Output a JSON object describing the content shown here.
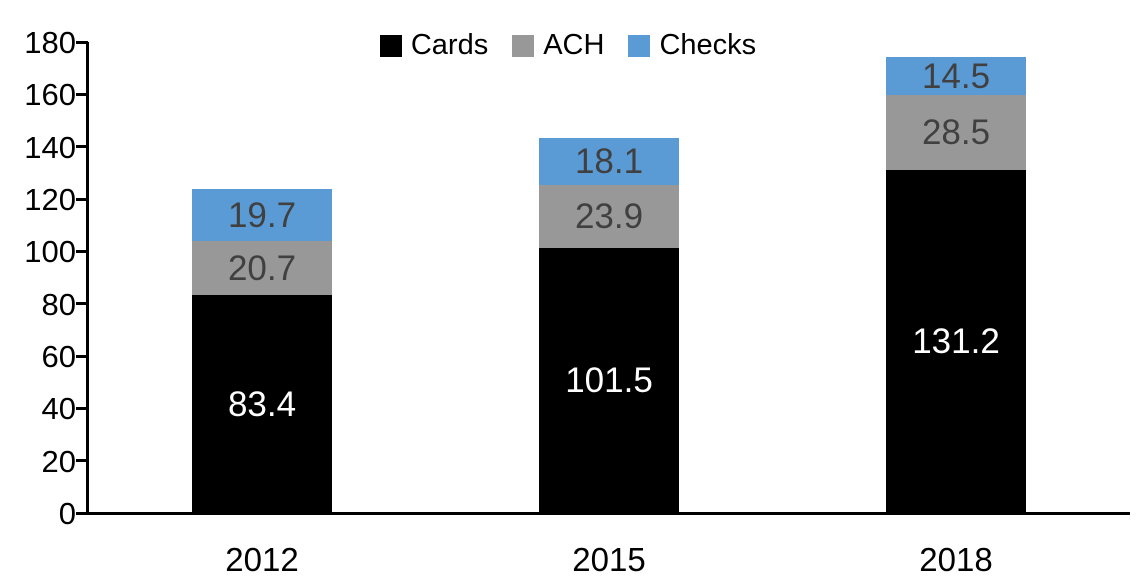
{
  "chart_data": {
    "type": "bar",
    "stacked": true,
    "title": "",
    "xlabel": "",
    "ylabel": "",
    "categories": [
      "2012",
      "2015",
      "2018"
    ],
    "series": [
      {
        "name": "Cards",
        "color": "#000000",
        "label_color": "#ffffff",
        "values": [
          83.4,
          101.5,
          131.2
        ]
      },
      {
        "name": "ACH",
        "color": "#989898",
        "label_color": "#404040",
        "values": [
          20.7,
          23.9,
          28.5
        ]
      },
      {
        "name": "Checks",
        "color": "#5B9BD5",
        "label_color": "#404040",
        "values": [
          19.7,
          18.1,
          14.5
        ]
      }
    ],
    "totals": [
      123.8,
      143.5,
      174.2
    ],
    "ylim": [
      0,
      180
    ],
    "ytick_step": 20,
    "yticks": [
      0,
      20,
      40,
      60,
      80,
      100,
      120,
      140,
      160,
      180
    ],
    "legend_position": "top",
    "legend_labels": [
      "Cards",
      "ACH",
      "Checks"
    ],
    "grid": false,
    "axis_color": "#000000",
    "background_color": "#ffffff"
  }
}
